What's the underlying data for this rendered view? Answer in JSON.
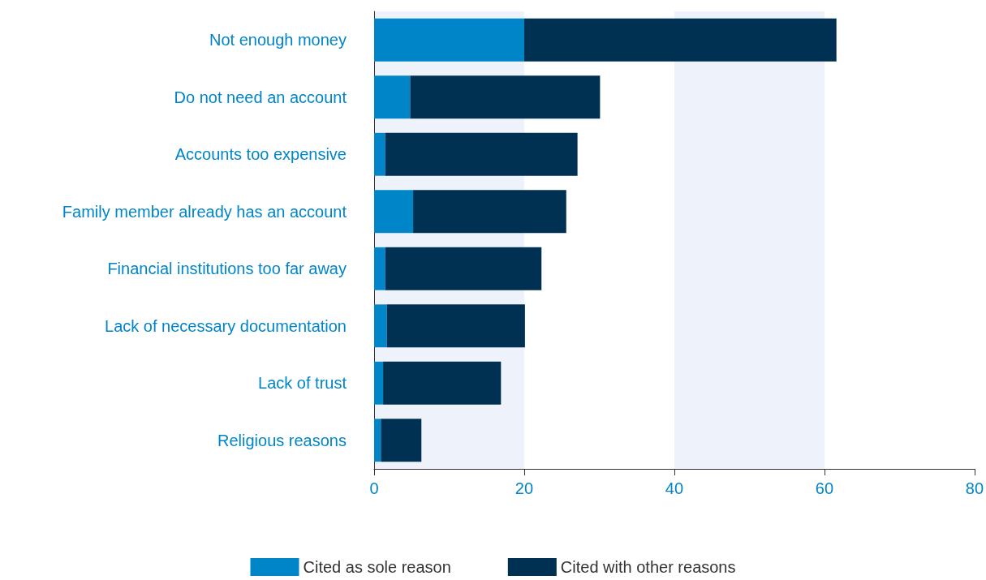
{
  "chart_data": {
    "type": "bar",
    "orientation": "horizontal",
    "stacked": true,
    "categories": [
      "Not enough money",
      "Do not need an account",
      "Accounts too expensive",
      "Family member already has an account",
      "Financial institutions too far away",
      "Lack of necessary documentation",
      "Lack of trust",
      "Religious reasons"
    ],
    "series": [
      {
        "name": "Cited as sole reason",
        "color": "#0085c8",
        "values": [
          20.0,
          4.8,
          1.5,
          5.2,
          1.5,
          1.7,
          1.2,
          0.9
        ]
      },
      {
        "name": "Cited with other reasons",
        "color": "#003152",
        "values": [
          41.6,
          25.3,
          25.6,
          20.4,
          20.8,
          18.4,
          15.7,
          5.4
        ]
      }
    ],
    "xlim": [
      0,
      80
    ],
    "xticks": [
      0,
      20,
      40,
      60,
      80
    ],
    "bands": [
      {
        "axis": "x",
        "from": 0,
        "to": 20,
        "color": "#eef3fb"
      },
      {
        "axis": "x",
        "from": 40,
        "to": 60,
        "color": "#eef3fb"
      }
    ],
    "grid": false,
    "legend": "bottom"
  }
}
